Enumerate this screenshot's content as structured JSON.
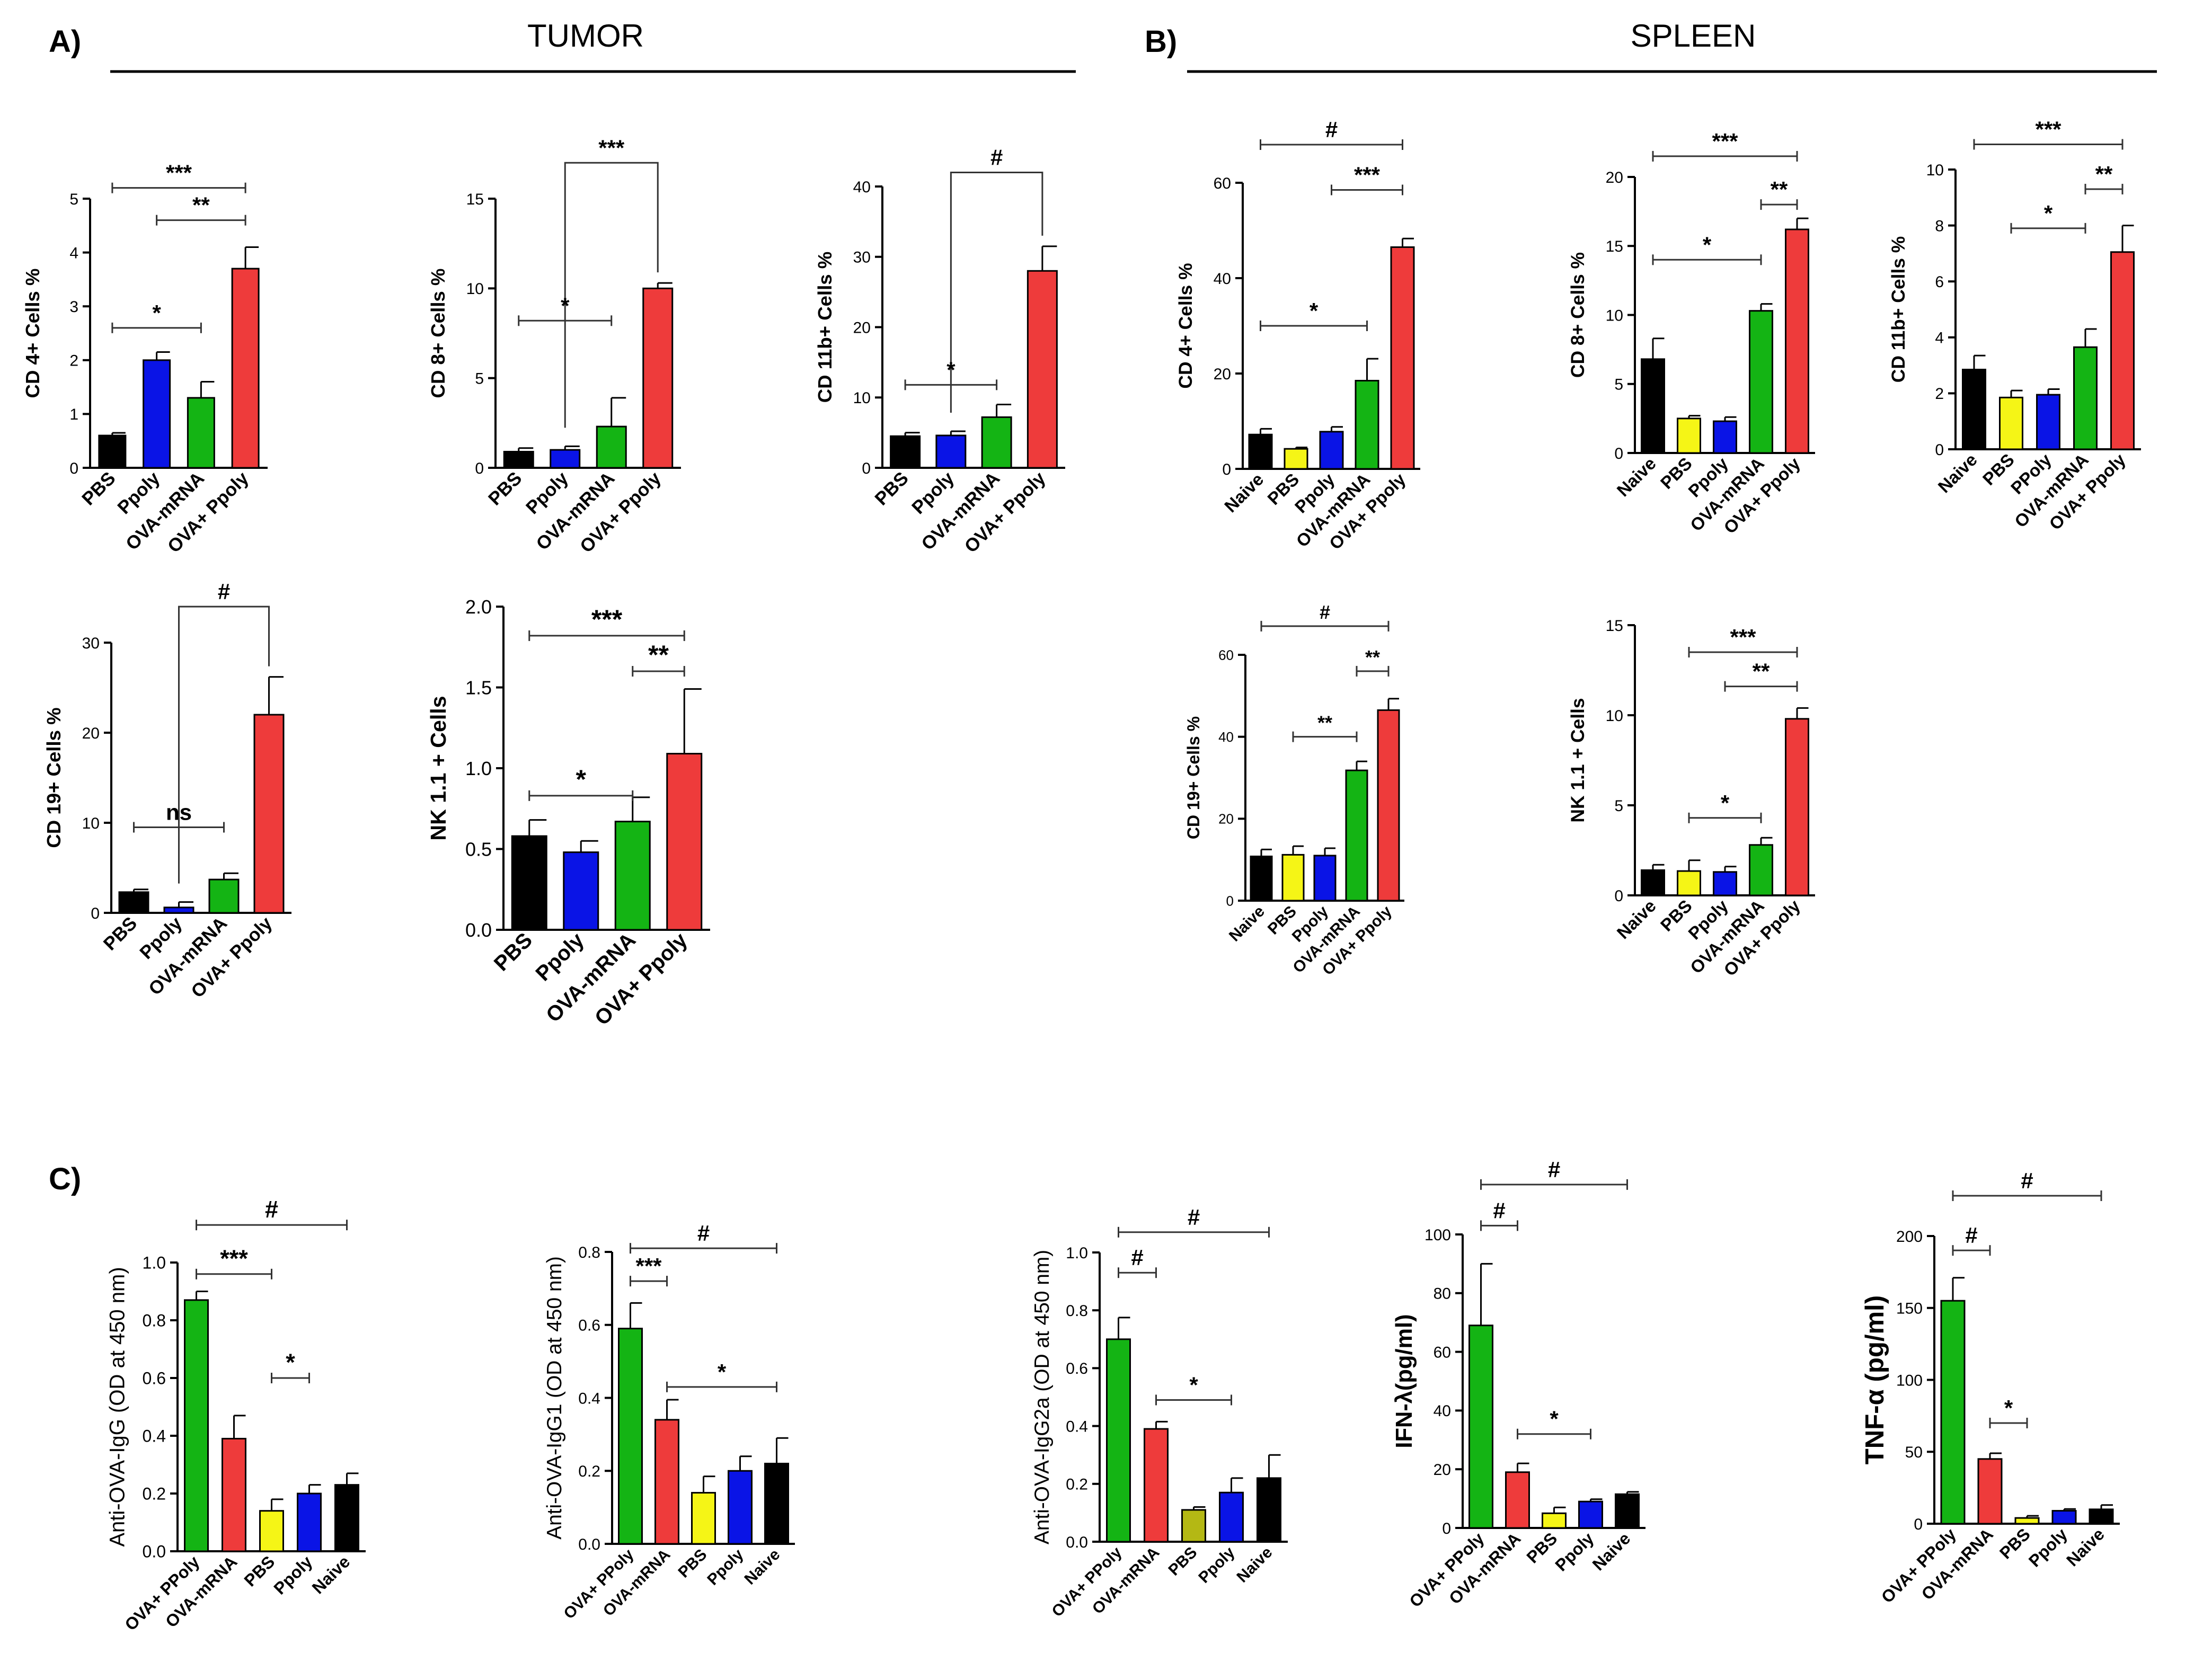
{
  "panels": {
    "A": {
      "letter": "A)",
      "title": "TUMOR"
    },
    "B": {
      "letter": "B)",
      "title": "SPLEEN"
    },
    "C": {
      "letter": "C)"
    }
  },
  "colors": {
    "black": "#000000",
    "blue": "#0a14e6",
    "green": "#14b414",
    "red": "#ee3b3b",
    "yellow": "#f5f516",
    "olive": "#b4b814"
  },
  "chart_data": [
    {
      "id": "a1",
      "type": "bar",
      "ylabel": "CD 4+ Cells %",
      "ylim": [
        0,
        5
      ],
      "ticks": [
        "0",
        "1",
        "2",
        "3",
        "4",
        "5"
      ],
      "categories": [
        "PBS",
        "Ppoly",
        "OVA-mRNA",
        "OVA+ Ppoly"
      ],
      "values": [
        0.6,
        2.0,
        1.3,
        3.7
      ],
      "errors": [
        0.05,
        0.15,
        0.3,
        0.4
      ],
      "colors": [
        "black",
        "blue",
        "green",
        "red"
      ],
      "annotations": [
        {
          "label": "***",
          "from": 0,
          "to": 3,
          "y": 5.2
        },
        {
          "label": "**",
          "from": 1,
          "to": 3,
          "y": 4.6
        },
        {
          "label": "*",
          "from": 0,
          "to": 2,
          "y": 2.6
        }
      ]
    },
    {
      "id": "a2",
      "type": "bar",
      "ylabel": "CD 8+ Cells %",
      "ylim": [
        0,
        15
      ],
      "ticks": [
        "0",
        "5",
        "10",
        "15"
      ],
      "categories": [
        "PBS",
        "Ppoly",
        "OVA-mRNA",
        "OVA+ Ppoly"
      ],
      "values": [
        0.9,
        1.0,
        2.3,
        10.0
      ],
      "errors": [
        0.2,
        0.2,
        1.6,
        0.3
      ],
      "colors": [
        "black",
        "blue",
        "green",
        "red"
      ],
      "annotations": [
        {
          "label": "***",
          "from": 1,
          "to": 3,
          "y": 17.0,
          "style": "drop"
        },
        {
          "label": "*",
          "from": 0,
          "to": 2,
          "y": 8.2
        }
      ]
    },
    {
      "id": "a3",
      "type": "bar",
      "ylabel": "CD 11b+ Cells %",
      "ylim": [
        0,
        40
      ],
      "ticks": [
        "0",
        "10",
        "20",
        "30",
        "40"
      ],
      "categories": [
        "PBS",
        "Ppoly",
        "OVA-mRNA",
        "OVA+ Ppoly"
      ],
      "values": [
        4.5,
        4.6,
        7.2,
        28.0
      ],
      "errors": [
        0.5,
        0.6,
        1.8,
        3.5
      ],
      "colors": [
        "black",
        "blue",
        "green",
        "red"
      ],
      "annotations": [
        {
          "label": "#",
          "from": 1,
          "to": 3,
          "y": 42.0,
          "style": "drop"
        },
        {
          "label": "*",
          "from": 0,
          "to": 2,
          "y": 11.8
        }
      ]
    },
    {
      "id": "a4",
      "type": "bar",
      "ylabel": "CD 19+ Cells %",
      "ylim": [
        0,
        30
      ],
      "ticks": [
        "0",
        "10",
        "20",
        "30"
      ],
      "categories": [
        "PBS",
        "Ppoly",
        "OVA-mRNA",
        "OVA+ Ppoly"
      ],
      "values": [
        2.3,
        0.6,
        3.7,
        22.0
      ],
      "errors": [
        0.3,
        0.6,
        0.7,
        4.2
      ],
      "colors": [
        "black",
        "blue",
        "green",
        "red"
      ],
      "annotations": [
        {
          "label": "#",
          "from": 1,
          "to": 3,
          "y": 34.0,
          "style": "drop"
        },
        {
          "label": "ns",
          "from": 0,
          "to": 2,
          "y": 9.5
        }
      ]
    },
    {
      "id": "a5",
      "type": "bar",
      "ylabel": "NK 1.1 + Cells",
      "ylim": [
        0,
        2.0
      ],
      "ticks": [
        "0.0",
        "0.5",
        "1.0",
        "1.5",
        "2.0"
      ],
      "categories": [
        "PBS",
        "Ppoly",
        "OVA-mRNA",
        "OVA+ Ppoly"
      ],
      "values": [
        0.58,
        0.48,
        0.67,
        1.09
      ],
      "errors": [
        0.1,
        0.07,
        0.15,
        0.4
      ],
      "colors": [
        "black",
        "blue",
        "green",
        "red"
      ],
      "annotations": [
        {
          "label": "***",
          "from": 0,
          "to": 3,
          "y": 1.82
        },
        {
          "label": "**",
          "from": 2,
          "to": 3,
          "y": 1.6
        },
        {
          "label": "*",
          "from": 0,
          "to": 2,
          "y": 0.83
        }
      ]
    },
    {
      "id": "b1",
      "type": "bar",
      "ylabel": "CD 4+ Cells %",
      "ylim": [
        0,
        60
      ],
      "ticks": [
        "0",
        "20",
        "40",
        "60"
      ],
      "categories": [
        "Naive",
        "PBS",
        "Ppoly",
        "OVA-mRNA",
        "OVA+ Ppoly"
      ],
      "values": [
        7.2,
        4.2,
        7.8,
        18.5,
        46.5
      ],
      "errors": [
        1.2,
        0.3,
        1.0,
        4.6,
        1.8
      ],
      "colors": [
        "black",
        "yellow",
        "blue",
        "green",
        "red"
      ],
      "annotations": [
        {
          "label": "#",
          "from": 0,
          "to": 4,
          "y": 68.0
        },
        {
          "label": "***",
          "from": 2,
          "to": 4,
          "y": 58.5
        },
        {
          "label": "*",
          "from": 0,
          "to": 3,
          "y": 30.0
        }
      ]
    },
    {
      "id": "b2",
      "type": "bar",
      "ylabel": "CD 8+ Cells %",
      "ylim": [
        0,
        20
      ],
      "ticks": [
        "0",
        "5",
        "10",
        "15",
        "20"
      ],
      "categories": [
        "Naive",
        "PBS",
        "Ppoly",
        "OVA-mRNA",
        "OVA+ Ppoly"
      ],
      "values": [
        6.8,
        2.5,
        2.3,
        10.3,
        16.2
      ],
      "errors": [
        1.5,
        0.2,
        0.3,
        0.5,
        0.8
      ],
      "colors": [
        "black",
        "yellow",
        "blue",
        "green",
        "red"
      ],
      "annotations": [
        {
          "label": "***",
          "from": 0,
          "to": 4,
          "y": 21.5
        },
        {
          "label": "**",
          "from": 3,
          "to": 4,
          "y": 18.0
        },
        {
          "label": "*",
          "from": 0,
          "to": 3,
          "y": 14.0
        }
      ]
    },
    {
      "id": "b3",
      "type": "bar",
      "ylabel": "CD 11b+ Cells %",
      "ylim": [
        0,
        10
      ],
      "ticks": [
        "0",
        "2",
        "4",
        "6",
        "8",
        "10"
      ],
      "categories": [
        "Naive",
        "PBS",
        "PPoly",
        "OVA-mRNA",
        "OVA+ Ppoly"
      ],
      "values": [
        2.85,
        1.85,
        1.95,
        3.65,
        7.05
      ],
      "errors": [
        0.5,
        0.25,
        0.2,
        0.65,
        0.95
      ],
      "colors": [
        "black",
        "yellow",
        "blue",
        "green",
        "red"
      ],
      "annotations": [
        {
          "label": "***",
          "from": 0,
          "to": 4,
          "y": 10.9
        },
        {
          "label": "**",
          "from": 3,
          "to": 4,
          "y": 9.3
        },
        {
          "label": "*",
          "from": 1,
          "to": 3,
          "y": 7.9
        }
      ]
    },
    {
      "id": "b4",
      "type": "bar",
      "ylabel": "CD 19+ Cells %",
      "ylim": [
        0,
        60
      ],
      "ticks": [
        "0",
        "20",
        "40",
        "60"
      ],
      "categories": [
        "Naive",
        "PBS",
        "Ppoly",
        "OVA-mRNA",
        "OVA+ Ppoly"
      ],
      "values": [
        10.8,
        11.2,
        11.0,
        31.8,
        46.5
      ],
      "errors": [
        1.7,
        2.1,
        1.8,
        2.2,
        2.8
      ],
      "colors": [
        "black",
        "yellow",
        "blue",
        "green",
        "red"
      ],
      "annotations": [
        {
          "label": "#",
          "from": 0,
          "to": 4,
          "y": 67.0
        },
        {
          "label": "**",
          "from": 3,
          "to": 4,
          "y": 56.0
        },
        {
          "label": "**",
          "from": 1,
          "to": 3,
          "y": 40.0
        }
      ]
    },
    {
      "id": "b5",
      "type": "bar",
      "ylabel": "NK 1.1 + Cells",
      "ylim": [
        0,
        15
      ],
      "ticks": [
        "0",
        "5",
        "10",
        "15"
      ],
      "categories": [
        "Naive",
        "PBS",
        "Ppoly",
        "OVA-mRNA",
        "OVA+ Ppoly"
      ],
      "values": [
        1.4,
        1.35,
        1.3,
        2.8,
        9.8
      ],
      "errors": [
        0.3,
        0.6,
        0.3,
        0.4,
        0.6
      ],
      "colors": [
        "black",
        "yellow",
        "blue",
        "green",
        "red"
      ],
      "annotations": [
        {
          "label": "***",
          "from": 1,
          "to": 4,
          "y": 13.5
        },
        {
          "label": "**",
          "from": 2,
          "to": 4,
          "y": 11.6
        },
        {
          "label": "*",
          "from": 1,
          "to": 3,
          "y": 4.3
        }
      ]
    },
    {
      "id": "c1",
      "type": "bar",
      "ylabel": "Anti-OVA-IgG (OD at 450 nm)",
      "ylim": [
        0,
        1.0
      ],
      "ticks": [
        "0.0",
        "0.2",
        "0.4",
        "0.6",
        "0.8",
        "1.0"
      ],
      "categories": [
        "OVA+ PPoly",
        "OVA-mRNA",
        "PBS",
        "Ppoly",
        "Naive"
      ],
      "values": [
        0.87,
        0.39,
        0.14,
        0.2,
        0.23
      ],
      "errors": [
        0.03,
        0.08,
        0.04,
        0.03,
        0.04
      ],
      "colors": [
        "green",
        "red",
        "yellow",
        "blue",
        "black"
      ],
      "annotations": [
        {
          "label": "#",
          "from": 0,
          "to": 4,
          "y": 1.13
        },
        {
          "label": "***",
          "from": 0,
          "to": 2,
          "y": 0.96
        },
        {
          "label": "*",
          "from": 2,
          "to": 3,
          "y": 0.6
        }
      ]
    },
    {
      "id": "c2",
      "type": "bar",
      "ylabel": "Anti-OVA-IgG1 (OD at 450 nm)",
      "ylim": [
        0,
        0.8
      ],
      "ticks": [
        "0.0",
        "0.2",
        "0.4",
        "0.6",
        "0.8"
      ],
      "categories": [
        "OVA+ PPoly",
        "OVA-mRNA",
        "PBS",
        "Ppoly",
        "Naive"
      ],
      "values": [
        0.59,
        0.34,
        0.14,
        0.2,
        0.22
      ],
      "errors": [
        0.07,
        0.055,
        0.045,
        0.04,
        0.07
      ],
      "colors": [
        "green",
        "red",
        "yellow",
        "blue",
        "black"
      ],
      "annotations": [
        {
          "label": "#",
          "from": 0,
          "to": 4,
          "y": 0.81
        },
        {
          "label": "***",
          "from": 0,
          "to": 1,
          "y": 0.72
        },
        {
          "label": "*",
          "from": 1,
          "to": 4,
          "y": 0.43
        }
      ]
    },
    {
      "id": "c3",
      "type": "bar",
      "ylabel": "Anti-OVA-IgG2a (OD at 450 nm)",
      "ylim": [
        0,
        1.0
      ],
      "ticks": [
        "0.0",
        "0.2",
        "0.4",
        "0.6",
        "0.8",
        "1.0"
      ],
      "categories": [
        "OVA+ PPoly",
        "OVA-mRNA",
        "PBS",
        "Ppoly",
        "Naive"
      ],
      "values": [
        0.7,
        0.39,
        0.11,
        0.17,
        0.22
      ],
      "errors": [
        0.075,
        0.025,
        0.01,
        0.05,
        0.08
      ],
      "colors": [
        "green",
        "red",
        "olive",
        "blue",
        "black"
      ],
      "annotations": [
        {
          "label": "#",
          "from": 0,
          "to": 4,
          "y": 1.07
        },
        {
          "label": "#",
          "from": 0,
          "to": 1,
          "y": 0.93
        },
        {
          "label": "*",
          "from": 1,
          "to": 3,
          "y": 0.49
        }
      ]
    },
    {
      "id": "c4",
      "type": "bar",
      "ylabel": "IFN-λ(pg/ml)",
      "ylim": [
        0,
        100
      ],
      "ticks": [
        "0",
        "20",
        "40",
        "60",
        "80",
        "100"
      ],
      "categories": [
        "OVA+ PPoly",
        "OVA-mRNA",
        "PBS",
        "Ppoly",
        "Naive"
      ],
      "values": [
        69,
        19,
        5,
        9,
        11.5
      ],
      "errors": [
        21,
        3,
        2,
        0.8,
        0.8
      ],
      "colors": [
        "green",
        "red",
        "yellow",
        "blue",
        "black"
      ],
      "annotations": [
        {
          "label": "#",
          "from": 0,
          "to": 4,
          "y": 117
        },
        {
          "label": "#",
          "from": 0,
          "to": 1,
          "y": 103
        },
        {
          "label": "*",
          "from": 1,
          "to": 3,
          "y": 32
        }
      ]
    },
    {
      "id": "c5",
      "type": "bar",
      "ylabel": "TNF-α (pg/ml)",
      "ylim": [
        0,
        200
      ],
      "ticks": [
        "0",
        "50",
        "100",
        "150",
        "200"
      ],
      "categories": [
        "OVA+ PPoly",
        "OVA-mRNA",
        "PBS",
        "Ppoly",
        "Naive"
      ],
      "values": [
        155,
        45,
        4,
        9,
        10
      ],
      "errors": [
        16,
        4,
        1.5,
        1.2,
        3
      ],
      "colors": [
        "green",
        "red",
        "yellow",
        "blue",
        "black"
      ],
      "annotations": [
        {
          "label": "#",
          "from": 0,
          "to": 4,
          "y": 228
        },
        {
          "label": "#",
          "from": 0,
          "to": 1,
          "y": 190
        },
        {
          "label": "*",
          "from": 1,
          "to": 2,
          "y": 70
        }
      ]
    }
  ]
}
